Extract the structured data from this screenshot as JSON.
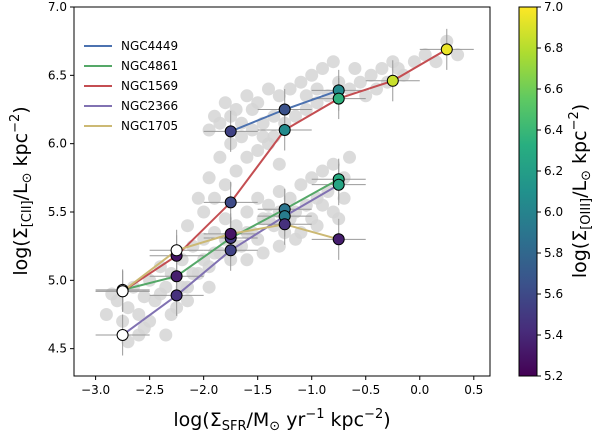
{
  "chart_data": {
    "type": "scatter",
    "xlabel_parts": {
      "pre": "log(Σ",
      "sub": "SFR",
      "mid": "/M",
      "odot": "⊙",
      "unit": " yr",
      "sup1": "−1",
      "unit2": " kpc",
      "sup2": "−2",
      "post": ")"
    },
    "ylabel_parts": {
      "pre": "log(Σ",
      "sub": "[CII]",
      "mid": "/L",
      "odot": "⊙",
      "unit": " kpc",
      "sup": "−2",
      "post": ")"
    },
    "colorbar_label_parts": {
      "pre": "log(Σ",
      "sub": "[OIII]",
      "mid": "/L",
      "odot": "⊙",
      "unit": " kpc",
      "sup": "−2",
      "post": ")"
    },
    "xlim": [
      -3.2,
      0.65
    ],
    "ylim": [
      4.3,
      7.0
    ],
    "xticks": [
      -3.0,
      -2.5,
      -2.0,
      -1.5,
      -1.0,
      -0.5,
      0.0,
      0.5
    ],
    "xtick_labels": [
      "−3.0",
      "−2.5",
      "−2.0",
      "−1.5",
      "−1.0",
      "−0.5",
      "0.0",
      "0.5"
    ],
    "yticks": [
      4.5,
      5.0,
      5.5,
      6.0,
      6.5,
      7.0
    ],
    "ytick_labels": [
      "4.5",
      "5.0",
      "5.5",
      "6.0",
      "6.5",
      "7.0"
    ],
    "colorbar": {
      "colormap": "viridis",
      "range": [
        5.2,
        7.0
      ],
      "ticks": [
        5.2,
        5.4,
        5.6,
        5.8,
        6.0,
        6.2,
        6.4,
        6.6,
        6.8,
        7.0
      ],
      "tick_labels": [
        "5.2",
        "5.4",
        "5.6",
        "5.8",
        "6.0",
        "6.2",
        "6.4",
        "6.6",
        "6.8",
        "7.0"
      ]
    },
    "legend_placement": "upper-left",
    "series": [
      {
        "name": "NGC4449",
        "color": "#4c72b0",
        "points": [
          {
            "x": -1.75,
            "y": 6.09,
            "c": 5.55
          },
          {
            "x": -1.25,
            "y": 6.25,
            "c": 5.65
          },
          {
            "x": -0.75,
            "y": 6.39,
            "c": 6.05
          }
        ]
      },
      {
        "name": "NGC4861",
        "color": "#55a868",
        "points": [
          {
            "x": -2.75,
            "y": 4.93,
            "c": null
          },
          {
            "x": -2.25,
            "y": 5.03,
            "c": 5.35
          },
          {
            "x": -1.75,
            "y": 5.31,
            "c": 5.5
          },
          {
            "x": -1.25,
            "y": 5.52,
            "c": 5.9
          },
          {
            "x": -0.75,
            "y": 5.74,
            "c": 6.3
          }
        ]
      },
      {
        "name": "NGC1569",
        "color": "#c44e52",
        "points": [
          {
            "x": -2.75,
            "y": 4.92,
            "c": null
          },
          {
            "x": -2.25,
            "y": 5.18,
            "c": 5.3
          },
          {
            "x": -1.75,
            "y": 5.57,
            "c": 5.6
          },
          {
            "x": -1.25,
            "y": 6.1,
            "c": 6.05
          },
          {
            "x": -0.75,
            "y": 6.33,
            "c": 6.35
          },
          {
            "x": -0.25,
            "y": 6.46,
            "c": 6.85
          },
          {
            "x": 0.25,
            "y": 6.69,
            "c": 6.95
          }
        ]
      },
      {
        "name": "NGC2366",
        "color": "#8172b2",
        "points": [
          {
            "x": -2.75,
            "y": 4.6,
            "c": null
          },
          {
            "x": -2.25,
            "y": 4.89,
            "c": 5.45
          },
          {
            "x": -1.75,
            "y": 5.22,
            "c": 5.55
          },
          {
            "x": -1.25,
            "y": 5.47,
            "c": 5.95
          },
          {
            "x": -0.75,
            "y": 5.7,
            "c": 6.25
          }
        ]
      },
      {
        "name": "NGC1705",
        "color": "#ccb974",
        "points": [
          {
            "x": -2.75,
            "y": 4.92,
            "c": null
          },
          {
            "x": -2.25,
            "y": 5.22,
            "c": null
          },
          {
            "x": -1.75,
            "y": 5.34,
            "c": 5.3
          },
          {
            "x": -1.25,
            "y": 5.41,
            "c": 5.45
          },
          {
            "x": -0.75,
            "y": 5.3,
            "c": 5.35
          }
        ]
      }
    ],
    "background_points": [
      [
        -2.9,
        4.75
      ],
      [
        -2.85,
        4.9
      ],
      [
        -2.8,
        4.85
      ],
      [
        -2.75,
        4.7
      ],
      [
        -2.7,
        4.8
      ],
      [
        -2.65,
        4.95
      ],
      [
        -2.6,
        4.75
      ],
      [
        -2.55,
        4.88
      ],
      [
        -2.5,
        5.0
      ],
      [
        -2.45,
        4.85
      ],
      [
        -2.4,
        5.1
      ],
      [
        -2.35,
        4.95
      ],
      [
        -2.3,
        5.05
      ],
      [
        -2.25,
        4.8
      ],
      [
        -2.2,
        5.15
      ],
      [
        -2.15,
        4.95
      ],
      [
        -2.1,
        5.25
      ],
      [
        -2.05,
        5.05
      ],
      [
        -2.0,
        5.3
      ],
      [
        -1.95,
        5.1
      ],
      [
        -1.9,
        5.35
      ],
      [
        -1.85,
        5.2
      ],
      [
        -1.8,
        5.45
      ],
      [
        -1.75,
        5.15
      ],
      [
        -1.7,
        5.4
      ],
      [
        -1.65,
        5.25
      ],
      [
        -1.6,
        5.5
      ],
      [
        -1.55,
        5.35
      ],
      [
        -1.5,
        5.6
      ],
      [
        -1.45,
        5.45
      ],
      [
        -1.4,
        5.55
      ],
      [
        -1.35,
        5.4
      ],
      [
        -1.3,
        5.65
      ],
      [
        -1.25,
        5.35
      ],
      [
        -1.2,
        5.6
      ],
      [
        -1.15,
        5.5
      ],
      [
        -1.1,
        5.7
      ],
      [
        -1.05,
        5.55
      ],
      [
        -1.0,
        5.75
      ],
      [
        -0.95,
        5.6
      ],
      [
        -0.9,
        5.8
      ],
      [
        -0.85,
        5.65
      ],
      [
        -0.8,
        5.85
      ],
      [
        -0.7,
        5.75
      ],
      [
        -0.65,
        5.9
      ],
      [
        -2.6,
        4.6
      ],
      [
        -2.5,
        4.7
      ],
      [
        -2.4,
        4.9
      ],
      [
        -2.3,
        4.75
      ],
      [
        -2.2,
        4.95
      ],
      [
        -2.1,
        5.05
      ],
      [
        -2.0,
        5.15
      ],
      [
        -1.9,
        5.2
      ],
      [
        -1.8,
        5.3
      ],
      [
        -1.7,
        5.25
      ],
      [
        -1.6,
        5.35
      ],
      [
        -1.5,
        5.3
      ],
      [
        -1.4,
        5.45
      ],
      [
        -1.3,
        5.5
      ],
      [
        -1.2,
        5.45
      ],
      [
        -1.1,
        5.35
      ],
      [
        -1.0,
        5.45
      ],
      [
        -0.9,
        5.55
      ],
      [
        -0.8,
        5.5
      ],
      [
        -2.0,
        5.5
      ],
      [
        -1.9,
        5.6
      ],
      [
        -1.8,
        5.7
      ],
      [
        -1.7,
        5.8
      ],
      [
        -1.6,
        5.9
      ],
      [
        -1.5,
        5.95
      ],
      [
        -1.4,
        6.0
      ],
      [
        -1.3,
        5.85
      ],
      [
        -2.15,
        5.4
      ],
      [
        -2.05,
        5.6
      ],
      [
        -1.95,
        5.75
      ],
      [
        -1.85,
        5.9
      ],
      [
        -1.75,
        6.0
      ],
      [
        -1.65,
        6.05
      ],
      [
        -1.55,
        6.1
      ],
      [
        -1.45,
        6.15
      ],
      [
        -1.35,
        6.05
      ],
      [
        -1.25,
        6.15
      ],
      [
        -1.15,
        6.2
      ],
      [
        -1.05,
        6.25
      ],
      [
        -0.95,
        6.3
      ],
      [
        -0.85,
        6.35
      ],
      [
        -0.75,
        6.45
      ],
      [
        -0.65,
        6.4
      ],
      [
        -0.55,
        6.45
      ],
      [
        -0.45,
        6.5
      ],
      [
        -0.35,
        6.55
      ],
      [
        -0.25,
        6.6
      ],
      [
        -0.15,
        6.5
      ],
      [
        -0.05,
        6.6
      ],
      [
        0.05,
        6.65
      ],
      [
        0.15,
        6.6
      ],
      [
        0.25,
        6.75
      ],
      [
        0.35,
        6.65
      ],
      [
        -1.9,
        6.2
      ],
      [
        -1.8,
        6.3
      ],
      [
        -1.7,
        6.25
      ],
      [
        -1.6,
        6.35
      ],
      [
        -1.5,
        6.3
      ],
      [
        -1.4,
        6.4
      ],
      [
        -1.3,
        6.35
      ],
      [
        -1.2,
        6.4
      ],
      [
        -1.1,
        6.45
      ],
      [
        -1.0,
        6.5
      ],
      [
        -0.9,
        6.55
      ],
      [
        -0.8,
        6.6
      ],
      [
        -1.95,
        6.1
      ],
      [
        -1.85,
        6.15
      ],
      [
        -1.75,
        6.2
      ],
      [
        -1.65,
        6.15
      ],
      [
        -1.55,
        6.25
      ],
      [
        -1.45,
        6.05
      ],
      [
        -1.35,
        6.2
      ],
      [
        -1.05,
        6.35
      ],
      [
        -0.95,
        6.4
      ],
      [
        -0.6,
        6.55
      ],
      [
        -0.5,
        6.35
      ],
      [
        -0.4,
        6.4
      ],
      [
        -0.3,
        6.45
      ],
      [
        -0.2,
        6.55
      ],
      [
        -2.7,
        4.55
      ],
      [
        -2.55,
        4.65
      ],
      [
        -2.35,
        4.6
      ],
      [
        -2.15,
        4.85
      ],
      [
        -1.95,
        4.95
      ],
      [
        -1.6,
        5.15
      ],
      [
        -1.45,
        5.2
      ],
      [
        -1.3,
        5.25
      ],
      [
        -1.15,
        5.3
      ],
      [
        -0.95,
        5.4
      ],
      [
        -0.75,
        5.45
      ],
      [
        -0.7,
        5.6
      ]
    ],
    "errorbar_half_x": 0.25,
    "errorbar_half_y": 0.15
  }
}
